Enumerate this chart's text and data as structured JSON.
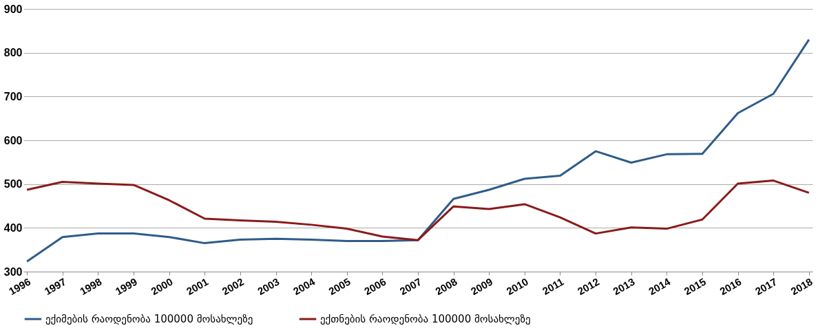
{
  "chart_data": {
    "type": "line",
    "categories": [
      "1996",
      "1997",
      "1998",
      "1999",
      "2000",
      "2001",
      "2002",
      "2003",
      "2004",
      "2005",
      "2006",
      "2007",
      "2008",
      "2009",
      "2010",
      "2011",
      "2012",
      "2013",
      "2014",
      "2015",
      "2016",
      "2017",
      "2018"
    ],
    "series": [
      {
        "name": "ექიმების რაოდენობა 100000 მოსახლეზე",
        "color": "#2e5c8a",
        "values": [
          323,
          379,
          387,
          387,
          379,
          365,
          373,
          375,
          373,
          370,
          370,
          372,
          466,
          487,
          512,
          519,
          575,
          549,
          568,
          569,
          662,
          706,
          830
        ]
      },
      {
        "name": "ექთნების რაოდენობა 100000 მოსახლეზე",
        "color": "#8b1a1a",
        "values": [
          487,
          505,
          501,
          498,
          463,
          421,
          417,
          414,
          407,
          398,
          380,
          372,
          449,
          443,
          454,
          424,
          387,
          401,
          398,
          419,
          501,
          508,
          480
        ]
      }
    ],
    "ylim": [
      300,
      900
    ],
    "yticks": [
      300,
      400,
      500,
      600,
      700,
      800,
      900
    ],
    "grid": "y",
    "legend": "bottom",
    "marker": "none",
    "line_style": "solid"
  }
}
